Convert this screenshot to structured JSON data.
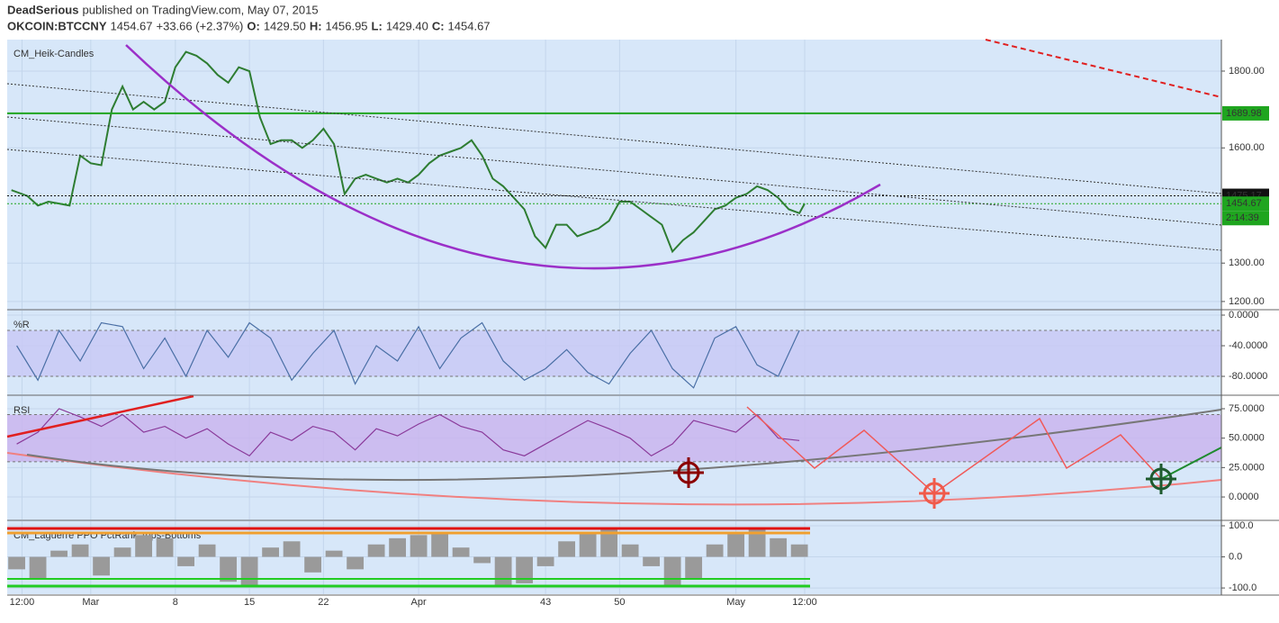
{
  "header": {
    "author": "DeadSerious",
    "published": "published on TradingView.com, May 07, 2015",
    "symbol": "OKCOIN:BTCCNY",
    "last": "1454.67",
    "change": "+33.66 (+2.37%)",
    "ohlc": [
      {
        "label": "O:",
        "value": "1429.50"
      },
      {
        "label": "H:",
        "value": "1456.95"
      },
      {
        "label": "L:",
        "value": "1429.40"
      },
      {
        "label": "C:",
        "value": "1454.67"
      }
    ]
  },
  "chart_data": [
    {
      "type": "line",
      "label": "CM_Heik-Candles",
      "color": "#2e7d32",
      "x": [
        -7.5,
        -6,
        -5,
        -4,
        -3,
        -2,
        -1,
        0,
        1,
        2,
        3,
        4,
        5,
        6,
        7,
        8,
        9,
        10,
        11,
        12,
        13,
        14,
        15,
        16,
        17,
        18,
        19,
        20,
        21,
        22,
        23,
        24,
        25,
        26,
        27,
        28,
        29,
        30,
        31,
        32,
        33,
        34,
        35,
        36,
        37,
        38,
        39,
        40,
        41,
        42,
        43,
        44,
        45,
        46,
        47,
        48,
        49,
        50,
        51,
        52,
        53,
        54,
        55,
        56,
        57,
        58,
        59,
        60,
        61,
        62,
        63,
        64,
        65,
        66,
        67,
        67.5
      ],
      "values": [
        1490,
        1475,
        1450,
        1460,
        1455,
        1450,
        1580,
        1560,
        1555,
        1700,
        1760,
        1700,
        1720,
        1700,
        1720,
        1810,
        1850,
        1840,
        1820,
        1790,
        1770,
        1810,
        1800,
        1680,
        1610,
        1620,
        1620,
        1600,
        1620,
        1650,
        1610,
        1480,
        1520,
        1530,
        1520,
        1510,
        1520,
        1510,
        1530,
        1560,
        1580,
        1590,
        1600,
        1620,
        1580,
        1520,
        1500,
        1470,
        1440,
        1370,
        1340,
        1400,
        1400,
        1370,
        1380,
        1390,
        1410,
        1460,
        1460,
        1440,
        1420,
        1400,
        1330,
        1360,
        1380,
        1410,
        1440,
        1450,
        1470,
        1480,
        1500,
        1490,
        1470,
        1440,
        1430,
        1455
      ],
      "xlim": [
        -7.9,
        106.9
      ],
      "ylim": [
        1181,
        1882
      ],
      "yticks": [
        {
          "value": 1200,
          "label": "1200.00"
        },
        {
          "value": 1300,
          "label": "1300.00"
        },
        {
          "value": 1600,
          "label": "1600.00"
        },
        {
          "value": 1800,
          "label": "1800.00"
        }
      ],
      "price_lines": [
        {
          "value": 1689.98,
          "color": "#1fa51f"
        },
        {
          "value": 1475.17,
          "color": "#111111"
        },
        {
          "value": 1454.67,
          "color": "#1fa51f"
        }
      ],
      "countdown": "2:14:39"
    },
    {
      "type": "line",
      "label": "%R",
      "color": "#4a6fa5",
      "x": [
        -7,
        -5,
        -3,
        -1,
        1,
        3,
        5,
        7,
        9,
        11,
        13,
        15,
        17,
        19,
        21,
        23,
        25,
        27,
        29,
        31,
        33,
        35,
        37,
        39,
        41,
        43,
        45,
        47,
        49,
        51,
        53,
        55,
        57,
        59,
        61,
        63,
        65,
        67
      ],
      "values": [
        -40,
        -85,
        -20,
        -60,
        -10,
        -15,
        -70,
        -30,
        -80,
        -20,
        -55,
        -10,
        -30,
        -85,
        -50,
        -20,
        -90,
        -40,
        -60,
        -15,
        -70,
        -30,
        -10,
        -60,
        -85,
        -70,
        -45,
        -75,
        -90,
        -50,
        -20,
        -70,
        -95,
        -30,
        -15,
        -65,
        -80,
        -20
      ],
      "xlim": [
        -7.9,
        106.9
      ],
      "ylim": [
        -103.5,
        5.9
      ],
      "levels": [
        -20,
        -80
      ],
      "yticks": [
        {
          "value": 0,
          "label": "0.0000"
        },
        {
          "value": -40,
          "label": "-40.0000"
        },
        {
          "value": -80,
          "label": "-80.0000"
        }
      ]
    },
    {
      "type": "line",
      "label": "RSI",
      "color": "#8a3a9a",
      "x": [
        -7,
        -5,
        -3,
        -1,
        1,
        3,
        5,
        7,
        9,
        11,
        13,
        15,
        17,
        19,
        21,
        23,
        25,
        27,
        29,
        31,
        33,
        35,
        37,
        39,
        41,
        43,
        45,
        47,
        49,
        51,
        53,
        55,
        57,
        59,
        61,
        63,
        65,
        67
      ],
      "values": [
        45,
        55,
        75,
        68,
        60,
        70,
        55,
        60,
        50,
        58,
        45,
        35,
        55,
        48,
        60,
        55,
        40,
        58,
        52,
        62,
        70,
        60,
        55,
        40,
        35,
        45,
        55,
        65,
        58,
        50,
        35,
        45,
        65,
        60,
        55,
        70,
        50,
        48
      ],
      "xlim": [
        -7.9,
        106.9
      ],
      "ylim": [
        -19.1,
        85.7
      ],
      "levels": [
        30,
        70
      ],
      "yticks": [
        {
          "value": 75,
          "label": "75.0000"
        },
        {
          "value": 50,
          "label": "50.0000"
        },
        {
          "value": 25,
          "label": "25.0000"
        },
        {
          "value": 0,
          "label": "0.0000"
        }
      ]
    },
    {
      "type": "bar",
      "label": "CM_Laguerre PPO PctRank Tops-Bottoms",
      "color": "#9a9a9a",
      "x": [
        -7,
        -5,
        -3,
        -1,
        1,
        3,
        5,
        7,
        9,
        11,
        13,
        15,
        17,
        19,
        21,
        23,
        25,
        27,
        29,
        31,
        33,
        35,
        37,
        39,
        41,
        43,
        45,
        47,
        49,
        51,
        53,
        55,
        57,
        59,
        61,
        63,
        65,
        67
      ],
      "values": [
        -40,
        -70,
        20,
        40,
        -60,
        30,
        70,
        60,
        -30,
        40,
        -80,
        -90,
        30,
        50,
        -50,
        20,
        -40,
        40,
        60,
        70,
        80,
        30,
        -20,
        -90,
        -85,
        -30,
        50,
        80,
        90,
        40,
        -30,
        -90,
        -70,
        40,
        80,
        90,
        60,
        40
      ],
      "xlim": [
        -7.9,
        106.9
      ],
      "ylim": [
        -120,
        114.5
      ],
      "yticks": [
        {
          "value": 100,
          "label": "100.0"
        },
        {
          "value": 0,
          "label": "0.0"
        },
        {
          "value": -100,
          "label": "-100.0"
        }
      ],
      "xticks": [
        {
          "value": -6.5,
          "label": "12:00"
        },
        {
          "value": 0,
          "label": "Mar"
        },
        8,
        15,
        22,
        {
          "value": 31,
          "label": "Apr"
        },
        43,
        50,
        {
          "value": 61,
          "label": "May"
        },
        {
          "value": 67.5,
          "label": "12:00"
        }
      ]
    }
  ]
}
